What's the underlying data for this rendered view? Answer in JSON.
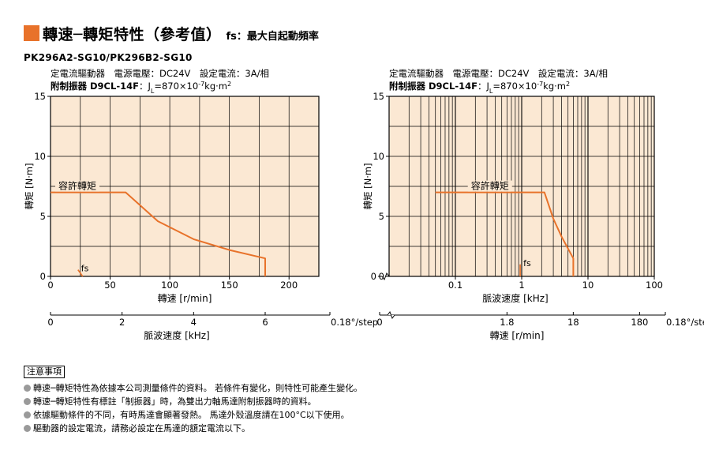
{
  "header": {
    "title": "轉速─轉矩特性（參考值）",
    "subtitle": "fs：最大自起動頻率",
    "accent_color": "#e8722a"
  },
  "model": "PK296A2-SG10/PK296B2-SG10",
  "chart_data": [
    {
      "type": "line",
      "conditions_line1": "定電流驅動器　電源電壓：DC24V　設定電流：3A/相",
      "conditions_line2_bold": "附制振器 D9CL-14F",
      "conditions_line2_rest": "：J",
      "inertia_sub": "L",
      "inertia_value": "=870×10",
      "inertia_exp": "-7",
      "inertia_unit": "kg·m",
      "inertia_unit_exp": "2",
      "ylabel": "轉矩 [N·m]",
      "ylim": [
        0,
        15
      ],
      "yticks": [
        0,
        5,
        10,
        15
      ],
      "x_scale": "linear",
      "xlabel": "轉速 [r/min]",
      "xlim": [
        0,
        225
      ],
      "xticks": [
        0,
        50,
        100,
        150,
        200
      ],
      "secondary_xlabel": "脈波速度 [kHz]",
      "secondary_xticks": [
        0,
        2,
        4,
        6
      ],
      "secondary_xlim": [
        0,
        7.5
      ],
      "secondary_extra_label": "0.18°/step",
      "plot_background": "#fbe8d3",
      "grid": true,
      "series": [
        {
          "name": "容許轉矩",
          "color": "#e8722a",
          "x": [
            0,
            63,
            90,
            120,
            150,
            180,
            180
          ],
          "y": [
            7,
            7,
            4.6,
            3.1,
            2.2,
            1.5,
            0
          ]
        }
      ],
      "fs_label": "fs",
      "fs_segment_x": [
        23,
        27
      ],
      "fs_segment_y": [
        0.55,
        0
      ]
    },
    {
      "type": "line",
      "conditions_line1": "定電流驅動器　電源電壓：DC24V　設定電流：3A/相",
      "conditions_line2_bold": "附制振器 D9CL-14F",
      "conditions_line2_rest": "：J",
      "inertia_sub": "L",
      "inertia_value": "=870×10",
      "inertia_exp": "-7",
      "inertia_unit": "kg·m",
      "inertia_unit_exp": "2",
      "ylabel": "轉矩 [N·m]",
      "ylim": [
        0,
        15
      ],
      "yticks": [
        0,
        5,
        10,
        15
      ],
      "x_scale": "log",
      "xlabel": "脈波速度 [kHz]",
      "xlim": [
        0.01,
        100
      ],
      "xticks": [
        0.1,
        1,
        10,
        100
      ],
      "xtick_labels": [
        "0.1",
        "1",
        "10",
        "100"
      ],
      "axis_break_label": "0",
      "secondary_xlabel": "轉速 [r/min]",
      "secondary_xticks": [
        0.6,
        6,
        60
      ],
      "secondary_xtick_labels": [
        "1.8",
        "18",
        "180"
      ],
      "secondary_zero_label": "0",
      "secondary_extra_label": "0.18°/step",
      "plot_background": "#fbe8d3",
      "grid": true,
      "series": [
        {
          "name": "容許轉矩",
          "color": "#e8722a",
          "x": [
            0.05,
            2.2,
            3.0,
            4.0,
            6.0,
            6.0
          ],
          "y": [
            7,
            7,
            4.8,
            3.3,
            1.5,
            0
          ]
        }
      ],
      "fs_label": "fs",
      "fs_segment_x": [
        0.95,
        0.95
      ],
      "fs_segment_y": [
        1.0,
        0
      ]
    }
  ],
  "notes": {
    "heading": "注意事項",
    "items": [
      "轉速─轉矩特性為依據本公司測量條件的資料。 若條件有變化，則特性可能產生變化。",
      "轉速─轉矩特性有標註「制振器」時，為雙出力軸馬達附制振器時的資料。",
      "依據驅動條件的不同，有時馬達會顯著發熱。 馬達外殼溫度請在100°C以下使用。",
      "驅動器的設定電流，請務必設定在馬達的額定電流以下。"
    ]
  }
}
